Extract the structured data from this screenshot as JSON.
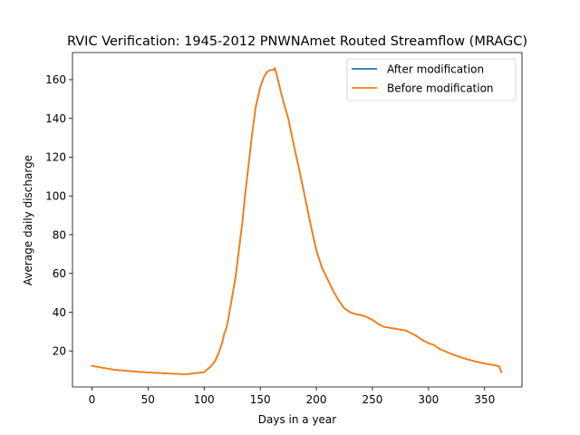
{
  "chart_data": {
    "type": "line",
    "title": "RVIC Verification: 1945-2012 PNWNAmet Routed Streamflow (MRAGC)",
    "xlabel": "Days in a year",
    "ylabel": "Average daily discharge",
    "xlim": [
      -17.3,
      383.3
    ],
    "ylim": [
      1.4,
      174.0
    ],
    "xticks": [
      0,
      50,
      100,
      150,
      200,
      250,
      300,
      350
    ],
    "yticks": [
      20,
      40,
      60,
      80,
      100,
      120,
      140,
      160
    ],
    "xtick_labels": [
      "0",
      "50",
      "100",
      "150",
      "200",
      "250",
      "300",
      "350"
    ],
    "ytick_labels": [
      "20",
      "40",
      "60",
      "80",
      "100",
      "120",
      "140",
      "160"
    ],
    "grid": false,
    "legend": "top-right",
    "series": [
      {
        "name": "After modification",
        "color": "#1f77b4",
        "x": [
          0,
          10,
          20,
          30,
          40,
          50,
          60,
          70,
          80,
          85,
          90,
          95,
          100,
          103,
          106,
          110,
          113,
          116,
          118,
          120,
          122,
          125,
          128,
          131,
          134,
          137,
          140,
          143,
          146,
          150,
          153,
          156,
          159,
          162,
          163,
          165,
          167,
          170,
          172,
          175,
          180,
          185,
          190,
          195,
          200,
          205,
          210,
          215,
          220,
          225,
          230,
          235,
          240,
          245,
          250,
          255,
          260,
          265,
          270,
          275,
          280,
          285,
          290,
          295,
          300,
          305,
          310,
          320,
          330,
          340,
          350,
          355,
          360,
          363,
          365
        ],
        "y": [
          12.3,
          11.3,
          10.3,
          9.8,
          9.3,
          8.9,
          8.6,
          8.3,
          8.0,
          8.0,
          8.4,
          8.7,
          9.0,
          10.5,
          12.0,
          15.0,
          19.0,
          24.0,
          29.0,
          32.0,
          38.0,
          48.0,
          58.0,
          72.0,
          86.0,
          103.0,
          118.0,
          133.0,
          146.0,
          156.0,
          161.0,
          164.0,
          165.0,
          165.0,
          166.0,
          162.0,
          157.0,
          150.0,
          146.0,
          140.0,
          126.0,
          113.0,
          99.0,
          85.0,
          72.0,
          63.0,
          57.0,
          51.0,
          46.0,
          42.0,
          40.0,
          39.0,
          38.5,
          37.5,
          36.0,
          34.0,
          32.5,
          32.0,
          31.5,
          31.0,
          30.5,
          29.0,
          27.5,
          25.5,
          24.0,
          23.0,
          21.0,
          18.5,
          16.5,
          14.8,
          13.5,
          13.0,
          12.5,
          12.0,
          9.0
        ]
      },
      {
        "name": "Before modification",
        "color": "#ff7f0e",
        "x": [
          0,
          10,
          20,
          30,
          40,
          50,
          60,
          70,
          80,
          85,
          90,
          95,
          100,
          103,
          106,
          110,
          113,
          116,
          118,
          120,
          122,
          125,
          128,
          131,
          134,
          137,
          140,
          143,
          146,
          150,
          153,
          156,
          159,
          162,
          163,
          165,
          167,
          170,
          172,
          175,
          180,
          185,
          190,
          195,
          200,
          205,
          210,
          215,
          220,
          225,
          230,
          235,
          240,
          245,
          250,
          255,
          260,
          265,
          270,
          275,
          280,
          285,
          290,
          295,
          300,
          305,
          310,
          320,
          330,
          340,
          350,
          355,
          360,
          363,
          365
        ],
        "y": [
          12.3,
          11.3,
          10.3,
          9.8,
          9.3,
          8.9,
          8.6,
          8.3,
          8.0,
          8.0,
          8.4,
          8.7,
          9.0,
          10.5,
          12.0,
          15.0,
          19.0,
          24.0,
          29.0,
          32.0,
          38.0,
          48.0,
          58.0,
          72.0,
          86.0,
          103.0,
          118.0,
          133.0,
          146.0,
          156.0,
          161.0,
          164.0,
          165.0,
          165.0,
          166.0,
          162.0,
          157.0,
          150.0,
          146.0,
          140.0,
          126.0,
          113.0,
          99.0,
          85.0,
          72.0,
          63.0,
          57.0,
          51.0,
          46.0,
          42.0,
          40.0,
          39.0,
          38.5,
          37.5,
          36.0,
          34.0,
          32.5,
          32.0,
          31.5,
          31.0,
          30.5,
          29.0,
          27.5,
          25.5,
          24.0,
          23.0,
          21.0,
          18.5,
          16.5,
          14.8,
          13.5,
          13.0,
          12.5,
          12.0,
          9.0
        ]
      }
    ]
  }
}
